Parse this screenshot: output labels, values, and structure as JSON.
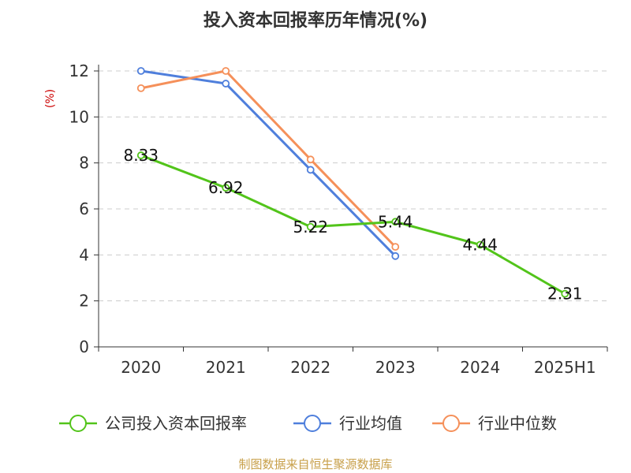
{
  "chart_data": {
    "type": "line",
    "title": "投入资本回报率历年情况(%)",
    "ylabel": "(%)",
    "categories": [
      "2020",
      "2021",
      "2022",
      "2023",
      "2024",
      "2025H1"
    ],
    "ylim": [
      0,
      12
    ],
    "yticks": [
      0,
      2,
      4,
      6,
      8,
      10,
      12
    ],
    "grid": true,
    "legend_position": "bottom",
    "series": [
      {
        "name": "公司投入资本回报率",
        "color": "#52c41a",
        "values": [
          8.33,
          6.92,
          5.22,
          5.44,
          4.44,
          2.31
        ],
        "labels": [
          "8.33",
          "6.92",
          "5.22",
          "5.44",
          "4.44",
          "2.31"
        ]
      },
      {
        "name": "行业均值",
        "color": "#4f7fdc",
        "values": [
          12.0,
          11.45,
          7.7,
          3.95,
          null,
          null
        ]
      },
      {
        "name": "行业中位数",
        "color": "#f5905a",
        "values": [
          11.25,
          12.0,
          8.15,
          4.35,
          null,
          null
        ]
      }
    ]
  },
  "source": "制图数据来自恒生聚源数据库"
}
